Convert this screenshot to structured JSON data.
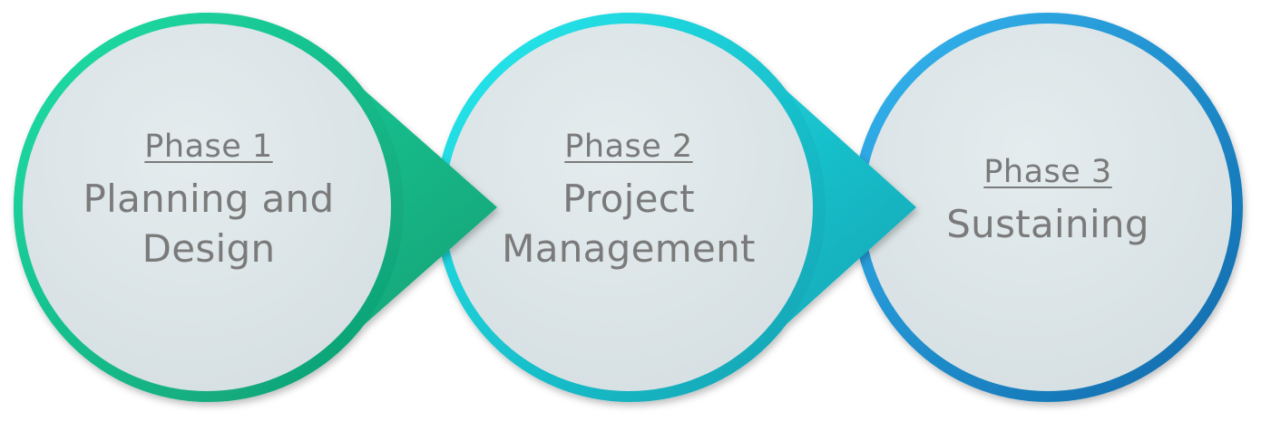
{
  "phases": [
    {
      "title": "Phase 1",
      "line1": "Planning and",
      "line2": "Design",
      "color_light": "#1fe0a8",
      "color_dark": "#11a878"
    },
    {
      "title": "Phase 2",
      "line1": "Project",
      "line2": "Management",
      "color_light": "#22e6ec",
      "color_dark": "#12a6b6"
    },
    {
      "title": "Phase 3",
      "line1": "Sustaining",
      "line2": "",
      "color_light": "#2fb2f0",
      "color_dark": "#0f6fb0"
    }
  ],
  "disc_fill": "#dde6e8"
}
